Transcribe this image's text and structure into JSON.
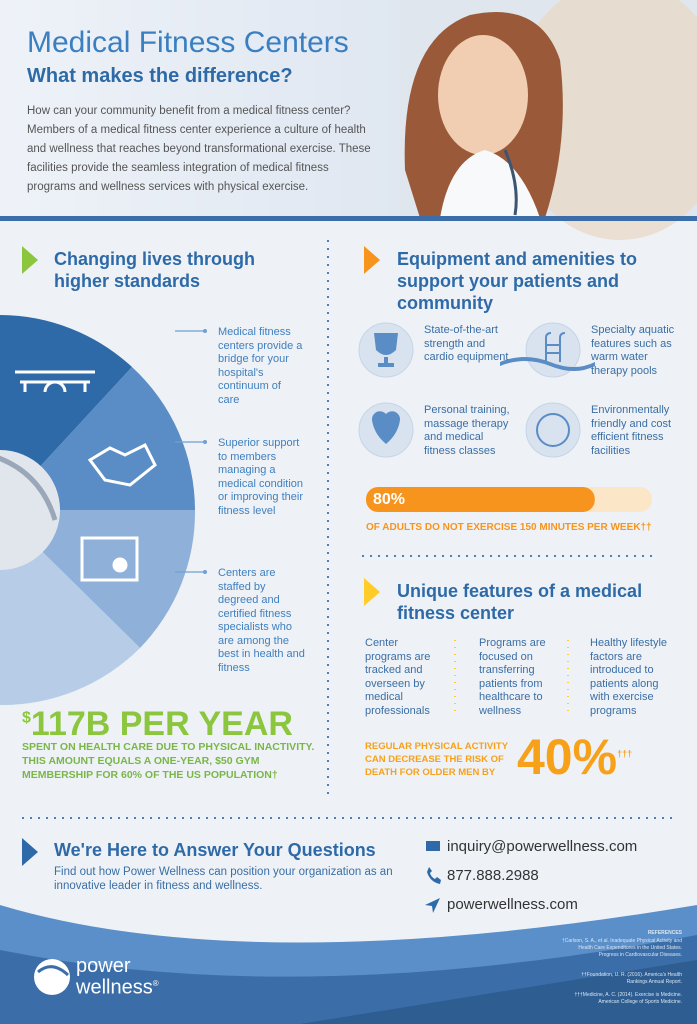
{
  "header": {
    "title": "Medical Fitness Centers",
    "subtitle": "What makes the difference?",
    "intro": "How can your community benefit from a medical fitness center? Members of a medical fitness center experience a culture of health and wellness that reaches beyond transformational exercise. These facilities provide the seamless integration of medical fitness programs and wellness services with physical exercise."
  },
  "left": {
    "heading": "Changing lives through higher standards",
    "items": [
      "Medical fitness centers provide a bridge for your hospital's continuum of care",
      "Superior support to members managing a medical condition or improving their fitness level",
      "Centers are staffed by degreed and certified fitness specialists who are among the best in health and fitness"
    ]
  },
  "spending": {
    "prefix": "$",
    "headline": "117B PER YEAR",
    "description": "SPENT ON HEALTH CARE DUE TO PHYSICAL INACTIVITY. THIS AMOUNT EQUALS A ONE-YEAR, $50 GYM MEMBERSHIP FOR 60% OF THE US POPULATION†"
  },
  "equipment": {
    "heading": "Equipment and amenities to support your patients and community",
    "items": [
      "State-of-the-art strength and cardio equipment",
      "Specialty aquatic features such as warm water therapy pools",
      "Personal training, massage therapy and medical fitness classes",
      "Environmentally friendly and cost efficient fitness facilities"
    ]
  },
  "exercise_stat": {
    "value": 80,
    "label": "80%",
    "caption": "OF ADULTS DO NOT EXERCISE 150 MINUTES PER WEEK††"
  },
  "unique": {
    "heading": "Unique features of a medical fitness center",
    "items": [
      "Center programs are tracked and overseen by medical professionals",
      "Programs are focused on transferring patients from healthcare to wellness",
      "Healthy lifestyle factors are introduced to patients along with exercise programs"
    ]
  },
  "activity_stat": {
    "caption": "REGULAR PHYSICAL ACTIVITY CAN DECREASE THE RISK OF DEATH FOR OLDER MEN BY",
    "value_label": "40%",
    "note": "†††"
  },
  "contact": {
    "heading": "We're Here to Answer Your Questions",
    "text": "Find out how Power Wellness can position your organization as an innovative leader in fitness and wellness.",
    "email": "inquiry@powerwellness.com",
    "phone": "877.888.2988",
    "website": "powerwellness.com"
  },
  "references": {
    "heading": "REFERENCES",
    "items": [
      "†Carlson, S. A., et al. Inadequate Physical Activity and Health Care Expenditures in the United States. Progress in Cardiovascular Diseases.",
      "††Foundation, U. R. (2016). America's Health Rankings Annual Report.",
      "†††Medicine, A. C. (2014). Exercise is Medicine. American College of Sports Medicine."
    ]
  },
  "brand": {
    "line1": "power",
    "line2": "wellness",
    "mark": "®"
  }
}
